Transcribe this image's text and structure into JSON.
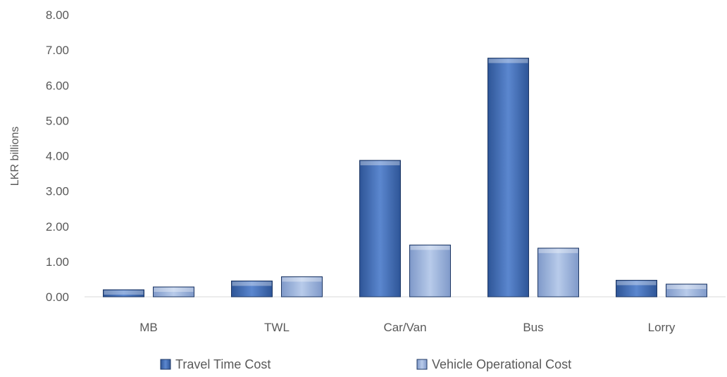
{
  "chart_data": {
    "type": "bar",
    "title": "",
    "xlabel": "",
    "ylabel": "LKR billions",
    "ylim": [
      0,
      8
    ],
    "y_ticks": [
      "0.00",
      "1.00",
      "2.00",
      "3.00",
      "4.00",
      "5.00",
      "6.00",
      "7.00",
      "8.00"
    ],
    "categories": [
      "MB",
      "TWL",
      "Car/Van",
      "Bus",
      "Lorry"
    ],
    "series": [
      {
        "name": "Travel Time Cost",
        "values": [
          0.2,
          0.45,
          3.87,
          6.77,
          0.47
        ],
        "color": "#4472C4"
      },
      {
        "name": "Vehicle Operational Cost",
        "values": [
          0.28,
          0.57,
          1.47,
          1.38,
          0.36
        ],
        "color": "#9DB5DF"
      }
    ],
    "grid": false,
    "legend_position": "bottom"
  }
}
